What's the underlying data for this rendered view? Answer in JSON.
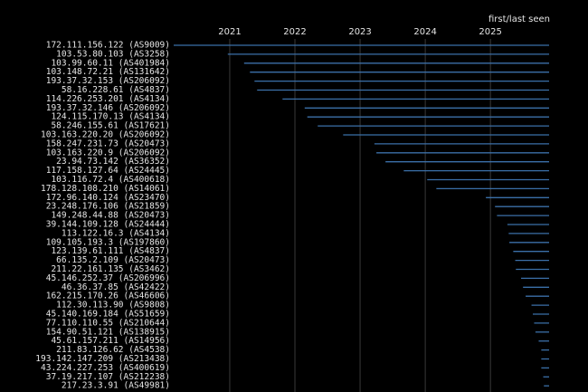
{
  "chart_data": {
    "type": "timeline",
    "x_label": "first/last seen",
    "categories": [
      "172.111.156.122 (AS9009)",
      "103.53.80.103 (AS3258)",
      "103.99.60.11 (AS401984)",
      "103.148.72.21 (AS131642)",
      "193.37.32.153 (AS206092)",
      "58.16.228.61 (AS4837)",
      "114.226.253.201 (AS4134)",
      "193.37.32.146 (AS206092)",
      "124.115.170.13 (AS4134)",
      "58.246.155.61 (AS17621)",
      "103.163.220.20 (AS206092)",
      "158.247.231.73 (AS20473)",
      "103.163.220.9 (AS206092)",
      "23.94.73.142 (AS36352)",
      "117.158.127.64 (AS24445)",
      "103.116.72.4 (AS400618)",
      "178.128.108.210 (AS14061)",
      "172.96.140.124 (AS23470)",
      "23.248.176.106 (AS21859)",
      "149.248.44.88 (AS20473)",
      "39.144.109.128 (AS24444)",
      "113.122.16.3 (AS4134)",
      "109.105.193.3 (AS197860)",
      "123.139.61.111 (AS4837)",
      "66.135.2.109 (AS20473)",
      "211.22.161.135 (AS3462)",
      "45.146.252.37 (AS206996)",
      "46.36.37.85 (AS42422)",
      "162.215.170.26 (AS46606)",
      "112.30.113.90 (AS9808)",
      "45.140.169.184 (AS51659)",
      "77.110.110.55 (AS210644)",
      "154.90.51.121 (AS138915)",
      "45.61.157.211 (AS14956)",
      "211.83.126.62 (AS4538)",
      "193.142.147.209 (AS213438)",
      "43.224.227.253 (AS400619)",
      "37.19.217.107 (AS212238)",
      "217.23.3.91 (AS49981)"
    ],
    "start": [
      2020.14,
      2020.97,
      2021.22,
      2021.31,
      2021.38,
      2021.42,
      2021.81,
      2022.15,
      2022.19,
      2022.35,
      2022.74,
      2023.22,
      2023.25,
      2023.39,
      2023.67,
      2024.03,
      2024.17,
      2024.93,
      2025.07,
      2025.1,
      2025.26,
      2025.28,
      2025.29,
      2025.35,
      2025.38,
      2025.39,
      2025.47,
      2025.5,
      2025.54,
      2025.63,
      2025.65,
      2025.67,
      2025.69,
      2025.74,
      2025.78,
      2025.78,
      2025.78,
      2025.81,
      2025.82
    ],
    "end": [
      2025.9,
      2025.9,
      2025.9,
      2025.9,
      2025.9,
      2025.9,
      2025.9,
      2025.9,
      2025.9,
      2025.9,
      2025.9,
      2025.9,
      2025.9,
      2025.9,
      2025.9,
      2025.9,
      2025.9,
      2025.9,
      2025.9,
      2025.9,
      2025.9,
      2025.9,
      2025.9,
      2025.9,
      2025.9,
      2025.9,
      2025.9,
      2025.9,
      2025.9,
      2025.9,
      2025.9,
      2025.9,
      2025.9,
      2025.9,
      2025.9,
      2025.9,
      2025.9,
      2025.9,
      2025.9
    ],
    "color": "#3b6fa8",
    "xlim": [
      2020.14,
      2025.9
    ],
    "xticks": [
      2021,
      2022,
      2023,
      2024,
      2025
    ],
    "grid": true
  }
}
